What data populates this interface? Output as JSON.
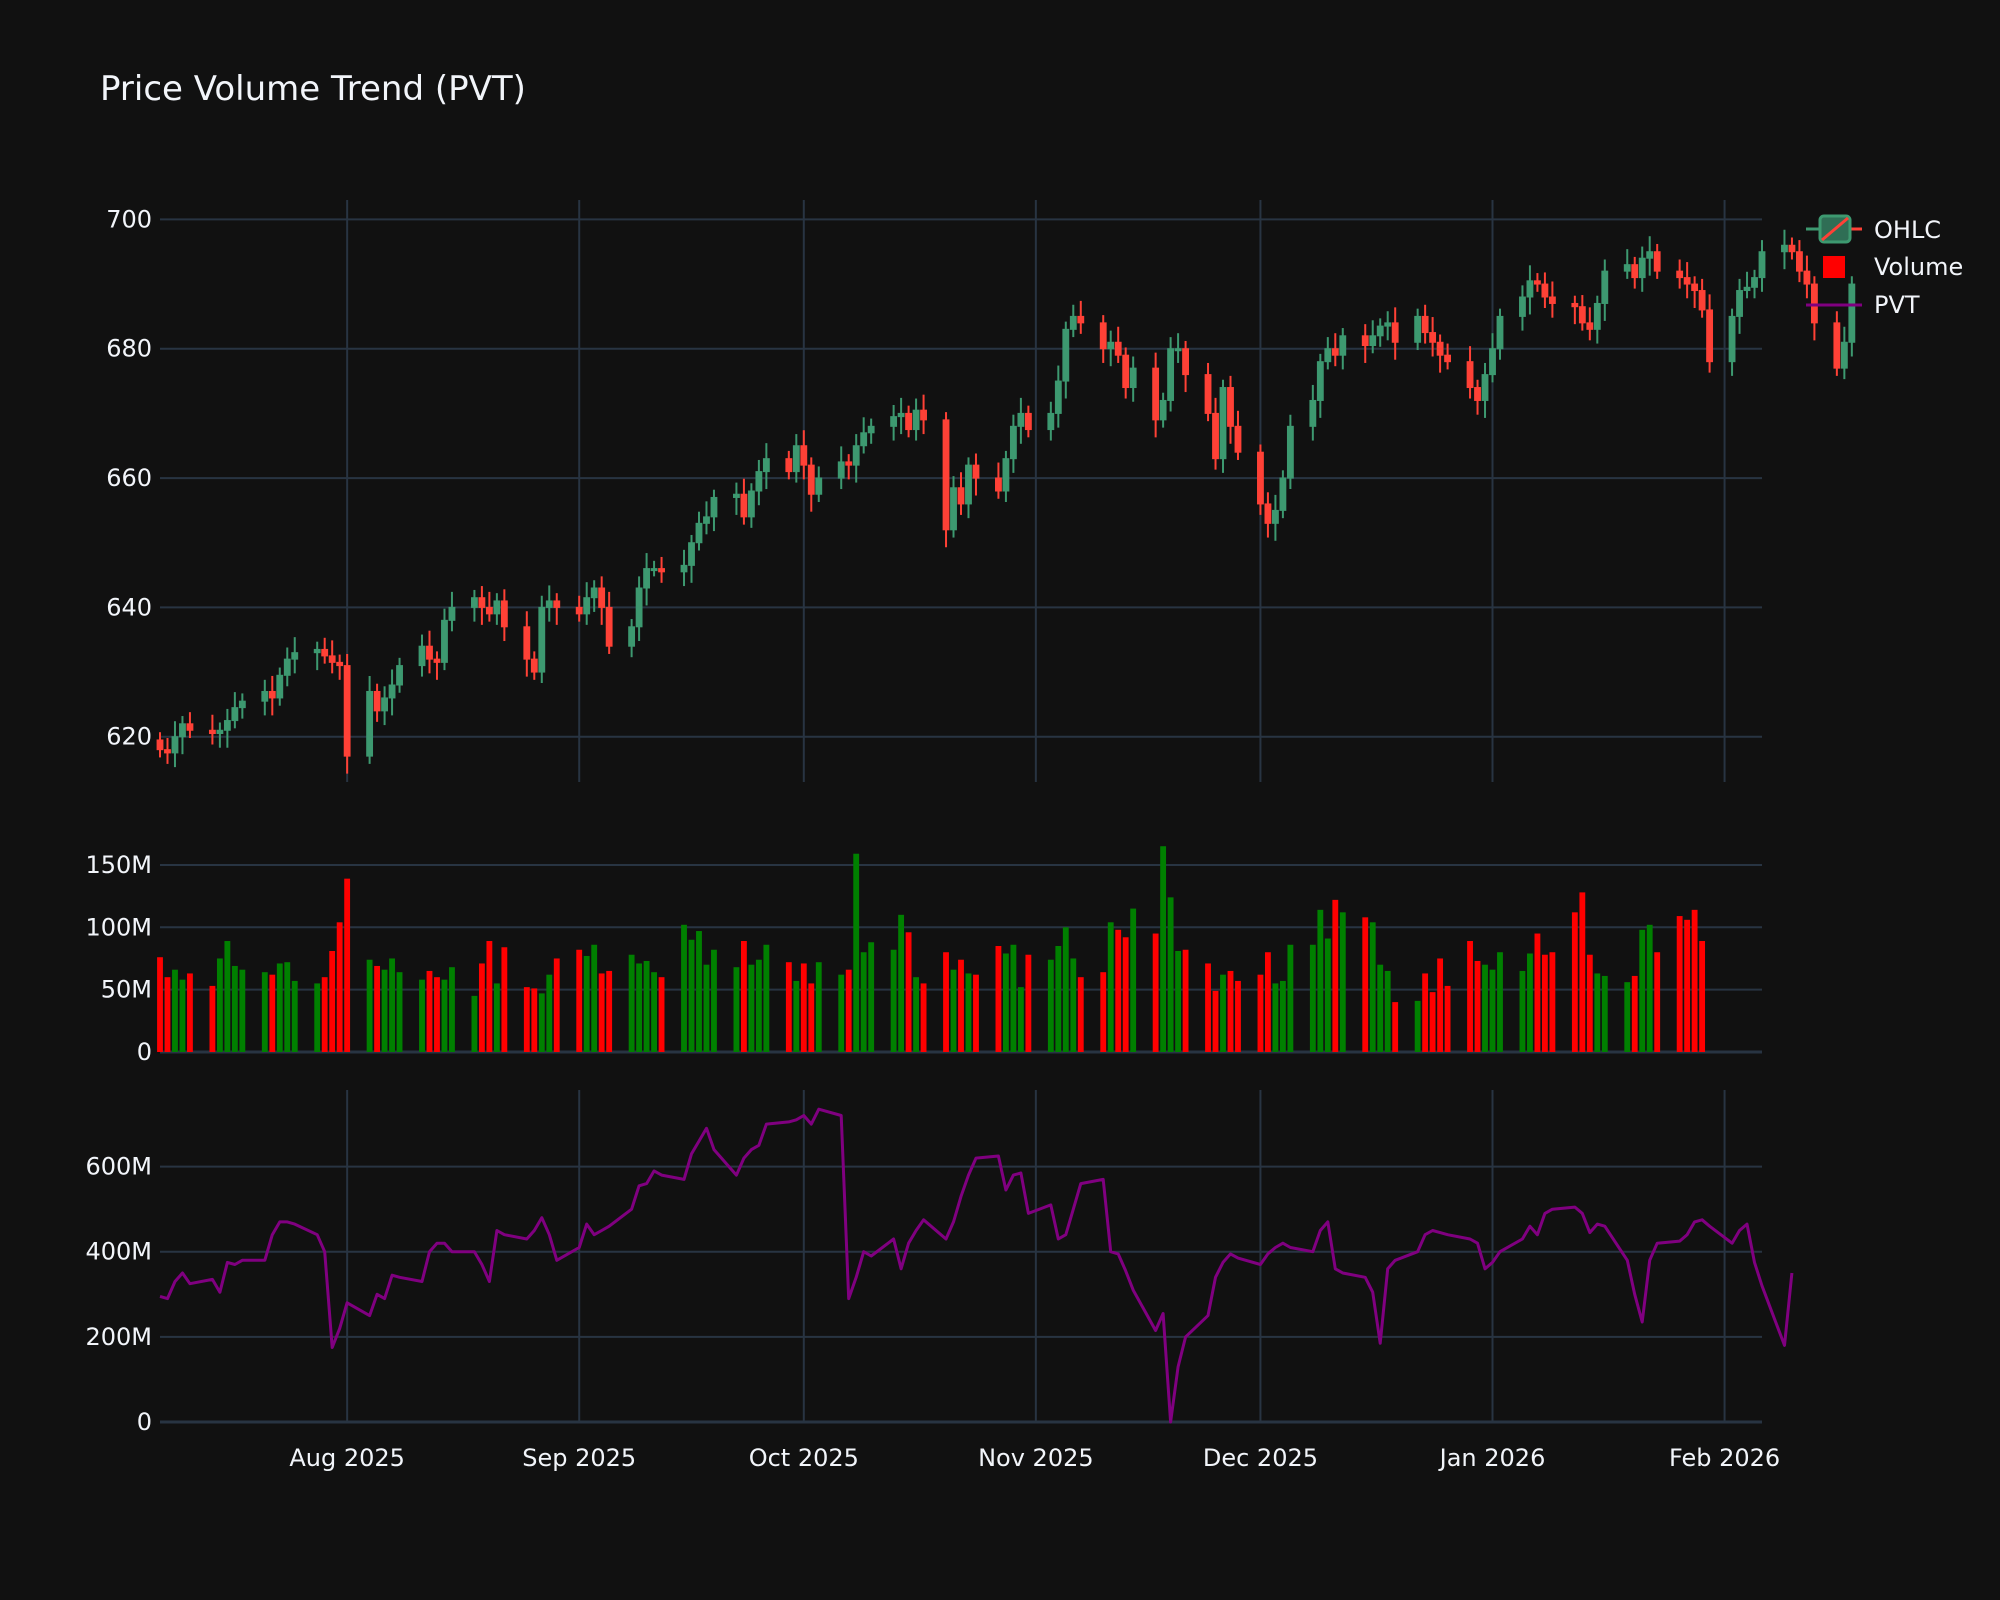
{
  "chart_data": {
    "type": "candlestick",
    "title": "Price Volume Trend (PVT)",
    "legend": {
      "position": "top-right",
      "entries": [
        "OHLC",
        "Volume",
        "PVT"
      ]
    },
    "grid": true,
    "colors": {
      "background": "#111111",
      "grid": "#283442",
      "text": "#f2f5fa",
      "increasing": "#3d9970",
      "decreasing": "#ff4136",
      "volume_up": "#008000",
      "volume_down": "#ff0000",
      "pvt": "#800080"
    },
    "x_axis": {
      "type": "date",
      "range": [
        "2025-07-07",
        "2026-02-06"
      ],
      "ticks": [
        {
          "date": "2025-08-01",
          "label": "Aug 2025"
        },
        {
          "date": "2025-09-01",
          "label": "Sep 2025"
        },
        {
          "date": "2025-10-01",
          "label": "Oct 2025"
        },
        {
          "date": "2025-11-01",
          "label": "Nov 2025"
        },
        {
          "date": "2025-12-01",
          "label": "Dec 2025"
        },
        {
          "date": "2026-01-01",
          "label": "Jan 2026"
        },
        {
          "date": "2026-02-01",
          "label": "Feb 2026"
        }
      ]
    },
    "panels": {
      "price": {
        "ylim": [
          613,
          703
        ],
        "ticks": [
          {
            "v": 620,
            "label": "620"
          },
          {
            "v": 640,
            "label": "640"
          },
          {
            "v": 660,
            "label": "660"
          },
          {
            "v": 680,
            "label": "680"
          },
          {
            "v": 700,
            "label": "700"
          }
        ]
      },
      "volume": {
        "ylim": [
          0,
          170
        ],
        "unit": "M",
        "ticks": [
          {
            "v": 0,
            "label": "0"
          },
          {
            "v": 50,
            "label": "50M"
          },
          {
            "v": 100,
            "label": "100M"
          },
          {
            "v": 150,
            "label": "150M"
          }
        ]
      },
      "pvt": {
        "ylim": [
          0,
          780
        ],
        "unit": "M",
        "ticks": [
          {
            "v": 0,
            "label": "0"
          },
          {
            "v": 200,
            "label": "200M"
          },
          {
            "v": 400,
            "label": "400M"
          },
          {
            "v": 600,
            "label": "600M"
          }
        ]
      }
    },
    "close": {
      "start_date": "2025-07-07",
      "values": [
        618,
        617.5,
        620,
        622,
        621,
        620.5,
        621,
        622.5,
        624.5,
        625.5,
        627,
        626,
        629.5,
        632,
        633,
        633.5,
        632.5,
        631.5,
        631,
        617,
        627,
        624,
        626,
        628,
        631,
        634,
        632,
        631.5,
        638,
        640,
        641.5,
        640,
        639,
        641,
        637,
        632,
        630,
        640,
        641,
        640,
        639,
        641.5,
        643,
        640,
        634,
        637,
        643,
        646,
        646,
        645.5,
        646.5,
        650,
        653,
        654,
        657,
        657.5,
        654,
        658,
        661,
        663,
        661,
        665,
        662,
        657.5,
        660,
        662.5,
        662,
        665,
        667,
        668,
        669.5,
        670,
        667.5,
        670.5,
        669,
        652,
        658.5,
        656,
        662,
        660,
        658,
        663,
        668,
        670,
        667.5,
        670,
        675,
        683,
        685,
        684,
        680,
        681,
        679,
        674,
        677,
        669,
        672,
        680,
        680,
        676,
        670,
        663,
        674,
        668,
        664,
        656,
        653,
        655,
        660,
        668,
        672,
        678,
        680,
        679,
        682,
        680.5,
        682,
        683.5,
        684,
        681,
        685,
        682.5,
        681,
        679,
        678,
        674,
        672,
        676,
        680,
        685,
        688,
        690.5,
        690,
        688,
        687,
        686.5,
        684,
        683,
        687,
        692,
        693,
        691,
        694,
        695,
        692,
        691,
        690,
        689,
        686,
        678,
        685,
        689,
        689.5,
        691,
        695,
        696,
        695,
        692,
        690,
        684,
        677,
        681,
        690
      ]
    },
    "volume": {
      "start_date": "2025-07-07",
      "values": [
        76,
        60,
        66,
        58,
        63,
        53,
        75,
        89,
        69,
        66,
        64,
        62,
        71,
        72,
        57,
        55,
        60,
        81,
        104,
        139,
        74,
        69,
        66,
        75,
        64,
        58,
        65,
        60,
        58,
        68,
        45,
        71,
        89,
        55,
        84,
        52,
        51,
        47,
        62,
        75,
        82,
        77,
        86,
        63,
        65,
        78,
        71,
        73,
        64,
        60,
        102,
        90,
        97,
        70,
        82,
        68,
        89,
        70,
        74,
        86,
        72,
        57,
        71,
        55,
        72,
        62,
        66,
        159,
        80,
        88,
        82,
        110,
        96,
        60,
        55,
        80,
        66,
        74,
        63,
        62,
        85,
        79,
        86,
        52,
        78,
        74,
        85,
        100,
        75,
        60,
        64,
        104,
        98,
        92,
        115,
        95,
        165,
        124,
        81,
        82,
        71,
        49,
        62,
        65,
        57,
        62,
        80,
        55,
        57,
        86,
        86,
        114,
        91,
        122,
        112,
        108,
        104,
        70,
        65,
        40,
        41,
        63,
        48,
        75,
        53,
        89,
        73,
        70,
        66,
        80,
        65,
        79,
        95,
        78,
        80,
        112,
        128,
        78,
        63,
        61,
        56,
        61,
        98,
        102,
        80,
        109,
        106,
        114,
        89
      ]
    },
    "pvt": {
      "start_date": "2025-07-07",
      "values": [
        295,
        290,
        330,
        350,
        325,
        335,
        305,
        375,
        370,
        380,
        380,
        440,
        470,
        470,
        465,
        440,
        400,
        175,
        220,
        280,
        250,
        300,
        290,
        345,
        340,
        330,
        400,
        420,
        420,
        400,
        400,
        370,
        330,
        450,
        440,
        430,
        450,
        480,
        440,
        380,
        410,
        465,
        440,
        450,
        460,
        500,
        555,
        560,
        590,
        580,
        570,
        630,
        660,
        690,
        640,
        580,
        620,
        640,
        650,
        700,
        705,
        710,
        720,
        700,
        735,
        720,
        290,
        340,
        400,
        390,
        430,
        360,
        420,
        450,
        475,
        430,
        470,
        530,
        580,
        620,
        625,
        545,
        580,
        585,
        490,
        510,
        430,
        440,
        500,
        560,
        570,
        400,
        395,
        355,
        310,
        215,
        255,
        0,
        130,
        200,
        250,
        340,
        375,
        395,
        385,
        370,
        395,
        410,
        420,
        410,
        400,
        450,
        470,
        360,
        350,
        340,
        305,
        185,
        360,
        380,
        400,
        440,
        450,
        445,
        440,
        430,
        420,
        360,
        375,
        400,
        430,
        460,
        440,
        490,
        500,
        505,
        490,
        445,
        465,
        460,
        380,
        300,
        235,
        380,
        420,
        425,
        440,
        470,
        475,
        460,
        420,
        450,
        465,
        375,
        320,
        180,
        350
      ]
    }
  }
}
